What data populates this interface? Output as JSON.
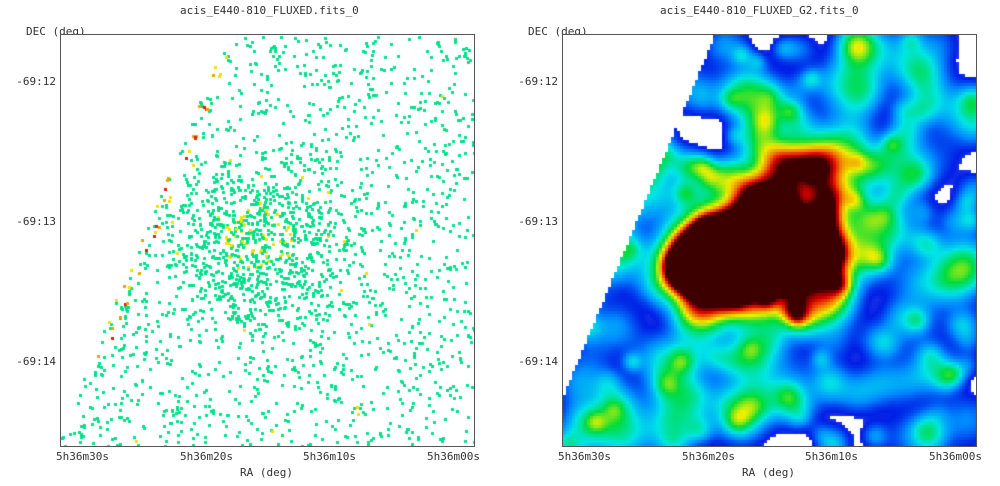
{
  "panels": [
    {
      "title": "acis_E440-810_FLUXED.fits_0",
      "ylabel": "DEC (deg)",
      "xlabel": "RA (deg)",
      "yticks": [
        "-69:12",
        "-69:13",
        "-69:14"
      ],
      "xticks": [
        "5h36m30s",
        "5h36m20s",
        "5h36m10s",
        "5h36m00s"
      ],
      "style": "binned-events"
    },
    {
      "title": "acis_E440-810_FLUXED_G2.fits_0",
      "ylabel": "DEC (deg)",
      "xlabel": "RA (deg)",
      "yticks": [
        "-69:12",
        "-69:13",
        "-69:14"
      ],
      "xticks": [
        "5h36m30s",
        "5h36m20s",
        "5h36m10s",
        "5h36m00s"
      ],
      "style": "smoothed"
    }
  ],
  "colors": {
    "frame": "#555555",
    "text": "#333333",
    "low": "#00e08a",
    "mid": "#f0e000",
    "high": "#e02000"
  }
}
